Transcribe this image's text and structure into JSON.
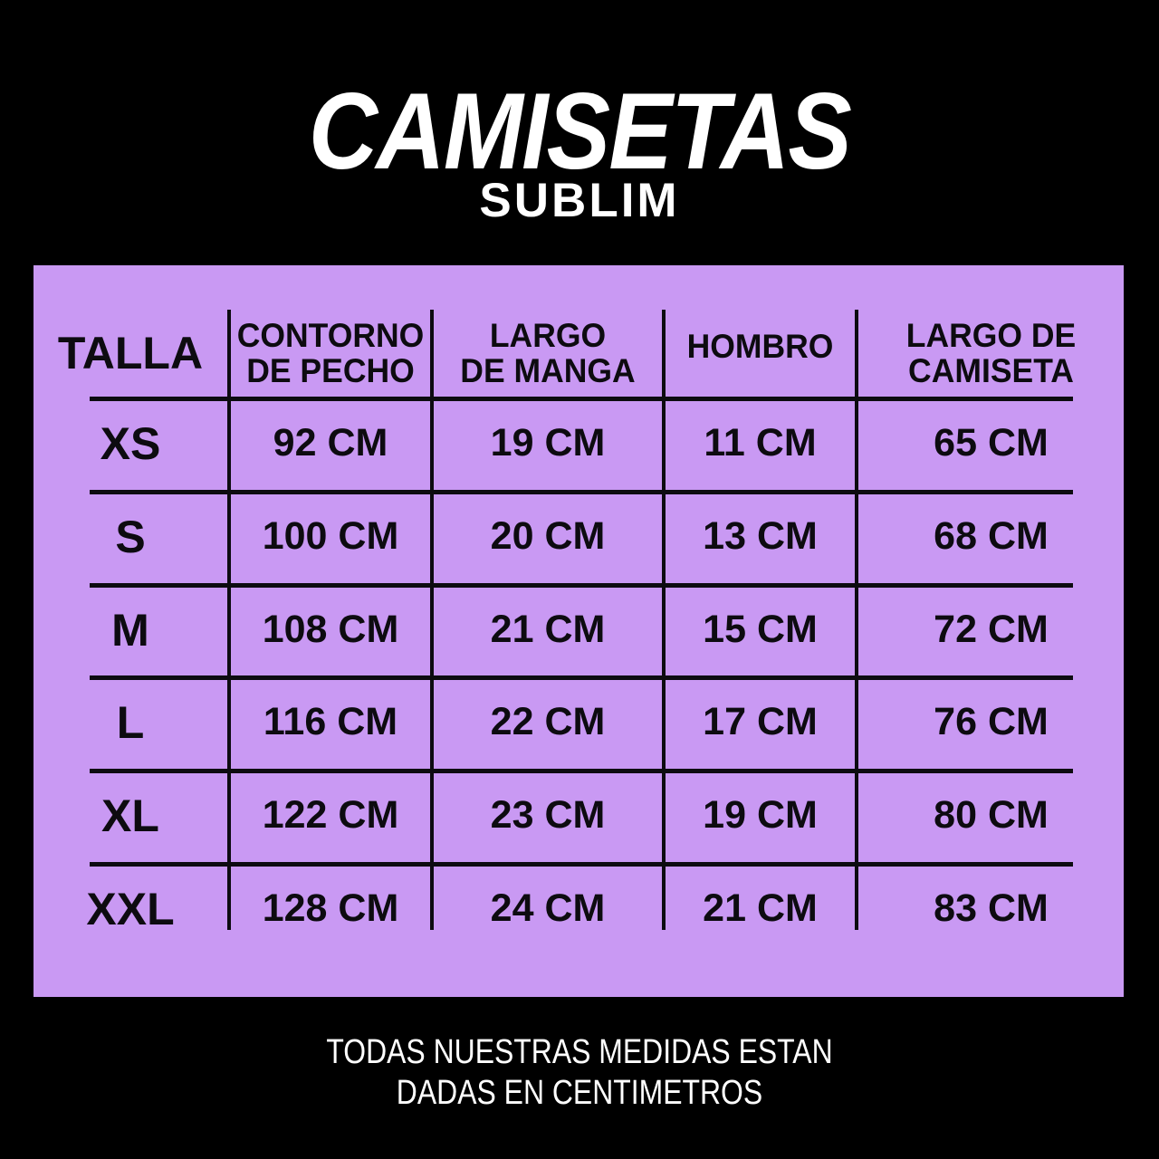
{
  "title": "CAMISETAS",
  "subtitle": "SUBLIM",
  "table": {
    "headers": [
      {
        "line1": "TALLA"
      },
      {
        "line1": "CONTORNO",
        "line2": "DE PECHO"
      },
      {
        "line1": "LARGO",
        "line2": "DE MANGA"
      },
      {
        "line1": "HOMBRO"
      },
      {
        "line1": "LARGO DE",
        "line2": "CAMISETA"
      }
    ],
    "rows": [
      {
        "size": "XS",
        "chest": "92 CM",
        "sleeve": "19 CM",
        "shoulder": "11 CM",
        "length": "65 CM"
      },
      {
        "size": "S",
        "chest": "100 CM",
        "sleeve": "20 CM",
        "shoulder": "13 CM",
        "length": "68 CM"
      },
      {
        "size": "M",
        "chest": "108 CM",
        "sleeve": "21 CM",
        "shoulder": "15 CM",
        "length": "72 CM"
      },
      {
        "size": "L",
        "chest": "116 CM",
        "sleeve": "22 CM",
        "shoulder": "17 CM",
        "length": "76 CM"
      },
      {
        "size": "XL",
        "chest": "122 CM",
        "sleeve": "23 CM",
        "shoulder": "19 CM",
        "length": "80 CM"
      },
      {
        "size": "XXL",
        "chest": "128 CM",
        "sleeve": "24 CM",
        "shoulder": "21 CM",
        "length": "83 CM"
      }
    ]
  },
  "footer": {
    "line1": "TODAS NUESTRAS MEDIDAS ESTAN",
    "line2": "DADAS EN CENTIMETROS"
  },
  "colors": {
    "background": "#000000",
    "panel": "#c999f3",
    "ink": "#0d0b10",
    "title_text": "#ffffff"
  }
}
